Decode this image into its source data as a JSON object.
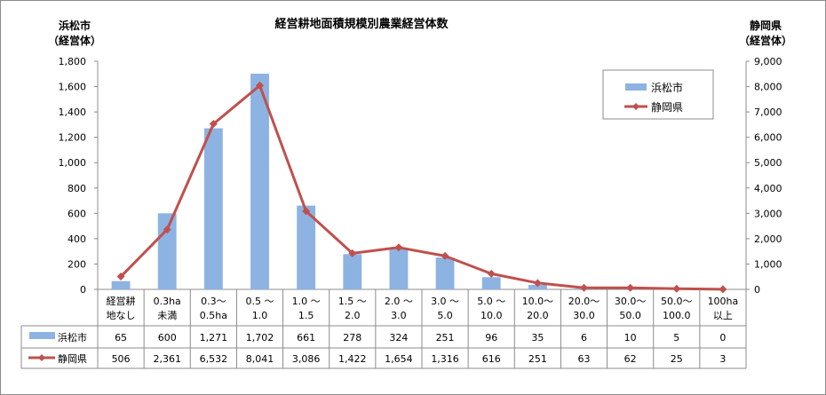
{
  "chart_data": {
    "type": "bar+line",
    "title": "経営耕地面積規模別農業経営体数",
    "y_left_label": [
      "浜松市",
      "（経営体）"
    ],
    "y_right_label": [
      "静岡県",
      "（経営体）"
    ],
    "y_left_ticks": [
      "0",
      "200",
      "400",
      "600",
      "800",
      "1,000",
      "1,200",
      "1,400",
      "1,600",
      "1,800"
    ],
    "y_right_ticks": [
      "0",
      "1,000",
      "2,000",
      "3,000",
      "4,000",
      "5,000",
      "6,000",
      "7,000",
      "8,000",
      "9,000"
    ],
    "ylim_left": [
      0,
      1800
    ],
    "ylim_right": [
      0,
      9000
    ],
    "categories": [
      [
        "経営耕",
        "地なし"
      ],
      [
        "0.3ha",
        "未満"
      ],
      [
        "0.3～",
        "0.5ha"
      ],
      [
        "0.5 ～",
        "1.0"
      ],
      [
        "1.0 ～",
        "1.5"
      ],
      [
        "1.5 ～",
        "2.0"
      ],
      [
        "2.0 ～",
        "3.0"
      ],
      [
        "3.0 ～",
        "5.0"
      ],
      [
        "5.0 ～",
        "10.0"
      ],
      [
        "10.0～",
        "20.0"
      ],
      [
        "20.0～",
        "30.0"
      ],
      [
        "30.0～",
        "50.0"
      ],
      [
        "50.0～",
        "100.0"
      ],
      [
        "100ha",
        "以上"
      ]
    ],
    "series": [
      {
        "name": "浜松市",
        "kind": "bar",
        "axis": "left",
        "color": "#8db3e2",
        "values": [
          65,
          600,
          1271,
          1702,
          661,
          278,
          324,
          251,
          96,
          35,
          6,
          10,
          5,
          0
        ],
        "labels": [
          "65",
          "600",
          "1,271",
          "1,702",
          "661",
          "278",
          "324",
          "251",
          "96",
          "35",
          "6",
          "10",
          "5",
          "0"
        ]
      },
      {
        "name": "静岡県",
        "kind": "line",
        "axis": "right",
        "color": "#c0504d",
        "values": [
          506,
          2361,
          6532,
          8041,
          3086,
          1422,
          1654,
          1316,
          616,
          251,
          63,
          62,
          25,
          3
        ],
        "labels": [
          "506",
          "2,361",
          "6,532",
          "8,041",
          "3,086",
          "1,422",
          "1,654",
          "1,316",
          "616",
          "251",
          "63",
          "62",
          "25",
          "3"
        ]
      }
    ],
    "legend_position": "top-right",
    "data_table": true
  }
}
